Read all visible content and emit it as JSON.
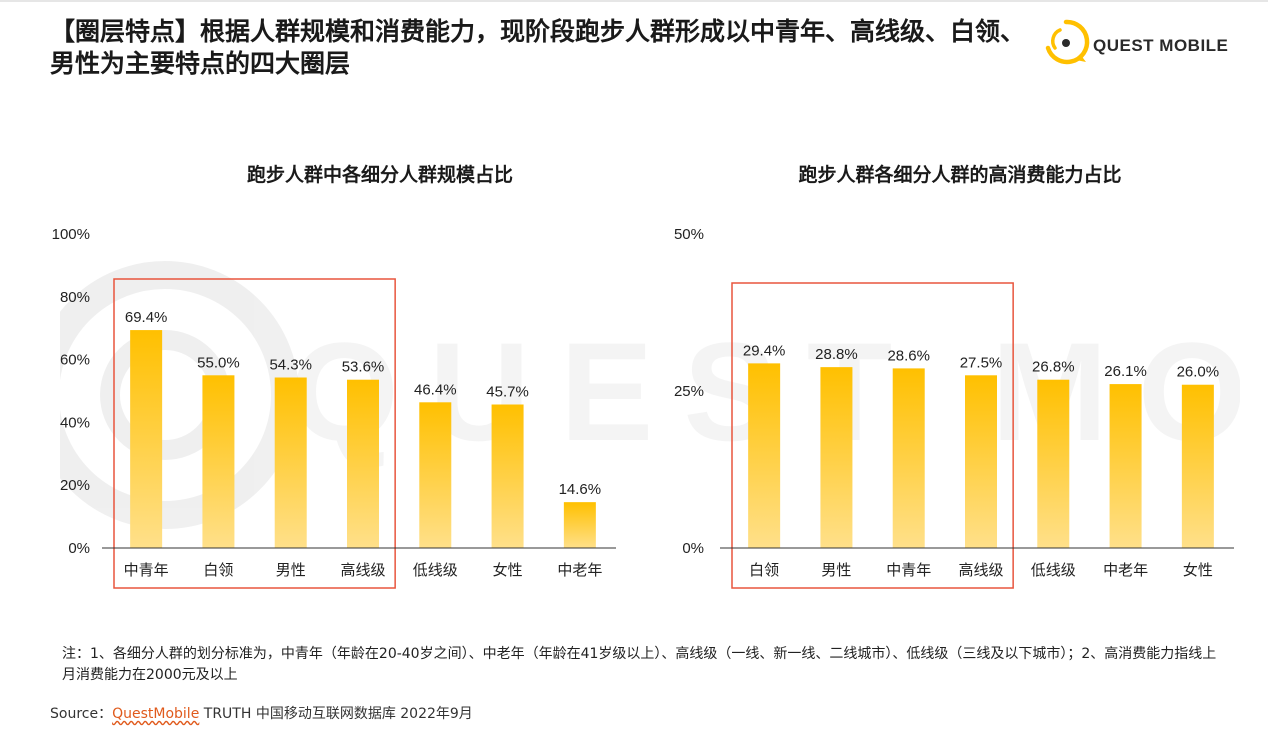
{
  "header": {
    "title": "【圈层特点】根据人群规模和消费能力，现阶段跑步人群形成以中青年、高线级、白领、男性为主要特点的四大圈层",
    "logo_text": "QUEST MOBILE"
  },
  "watermark_text": "QUEST MOBILE",
  "colors": {
    "bar": "#FFC000",
    "bar_light": "#FFE08A",
    "highlight_box": "#E8553D",
    "axis": "#333333"
  },
  "chart_data": [
    {
      "type": "bar",
      "title": "跑步人群中各细分人群规模占比",
      "categories": [
        "中青年",
        "白领",
        "男性",
        "高线级",
        "低线级",
        "女性",
        "中老年"
      ],
      "values": [
        69.4,
        55.0,
        54.3,
        53.6,
        46.4,
        45.7,
        14.6
      ],
      "value_labels": [
        "69.4%",
        "55.0%",
        "54.3%",
        "53.6%",
        "46.4%",
        "45.7%",
        "14.6%"
      ],
      "ylim": [
        0,
        100
      ],
      "yticks": [
        "0%",
        "20%",
        "40%",
        "60%",
        "80%",
        "100%"
      ],
      "ytick_values": [
        0,
        20,
        40,
        60,
        80,
        100
      ],
      "highlight_categories": [
        "中青年",
        "白领",
        "男性",
        "高线级"
      ],
      "grid": false
    },
    {
      "type": "bar",
      "title": "跑步人群各细分人群的高消费能力占比",
      "categories": [
        "白领",
        "男性",
        "中青年",
        "高线级",
        "低线级",
        "中老年",
        "女性"
      ],
      "values": [
        29.4,
        28.8,
        28.6,
        27.5,
        26.8,
        26.1,
        26.0
      ],
      "value_labels": [
        "29.4%",
        "28.8%",
        "28.6%",
        "27.5%",
        "26.8%",
        "26.1%",
        "26.0%"
      ],
      "ylim": [
        0,
        50
      ],
      "yticks": [
        "0%",
        "25%",
        "50%"
      ],
      "ytick_values": [
        0,
        25,
        50
      ],
      "highlight_categories": [
        "白领",
        "男性",
        "中青年",
        "高线级"
      ],
      "grid": false
    }
  ],
  "footer": {
    "note": "注：1、各细分人群的划分标准为，中青年（年龄在20-40岁之间）、中老年（年龄在41岁级以上）、高线级（一线、新一线、二线城市）、低线级（三线及以下城市）；2、高消费能力指线上月消费能力在2000元及以上",
    "source_prefix": "Source：",
    "source_brand": "QuestMobile",
    "source_rest": " TRUTH 中国移动互联网数据库 2022年9月"
  }
}
